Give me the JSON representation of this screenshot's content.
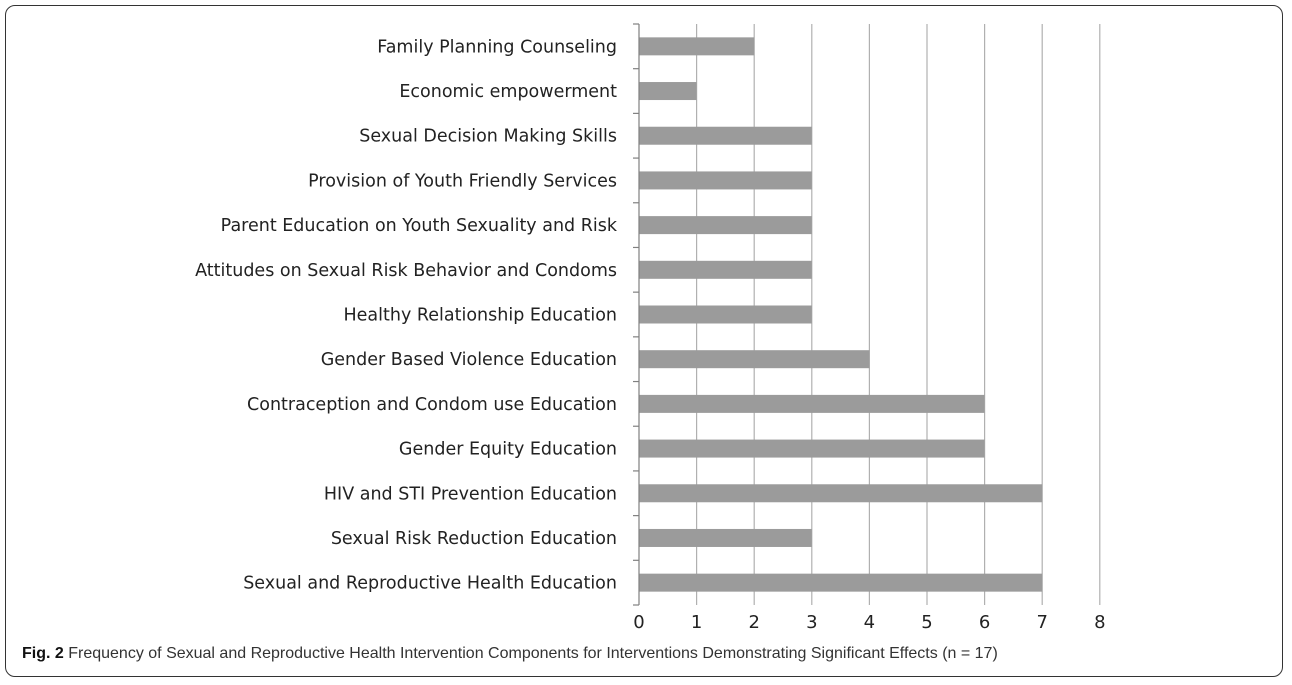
{
  "caption": {
    "fig_label": "Fig. 2",
    "text": "Frequency of Sexual and Reproductive Health Intervention Components for Interventions Demonstrating Significant Effects (n = 17)"
  },
  "chart_data": {
    "type": "bar",
    "orientation": "horizontal",
    "categories": [
      "Family Planning Counseling",
      "Economic empowerment",
      "Sexual Decision Making Skills",
      "Provision of Youth Friendly Services",
      "Parent Education on Youth Sexuality and Risk",
      "Attitudes on Sexual Risk Behavior and Condoms",
      "Healthy Relationship Education",
      "Gender Based Violence Education",
      "Contraception and Condom use Education",
      "Gender Equity Education",
      "HIV and STI Prevention Education",
      "Sexual Risk Reduction Education",
      "Sexual and Reproductive Health Education"
    ],
    "values": [
      2,
      1,
      3,
      3,
      3,
      3,
      3,
      4,
      6,
      6,
      7,
      3,
      7
    ],
    "xlim": [
      0,
      8
    ],
    "xticks": [
      "0",
      "1",
      "2",
      "3",
      "4",
      "5",
      "6",
      "7",
      "8"
    ],
    "grid": true,
    "bar_color": "#9b9b9b",
    "grid_color": "#b0b0b0"
  }
}
